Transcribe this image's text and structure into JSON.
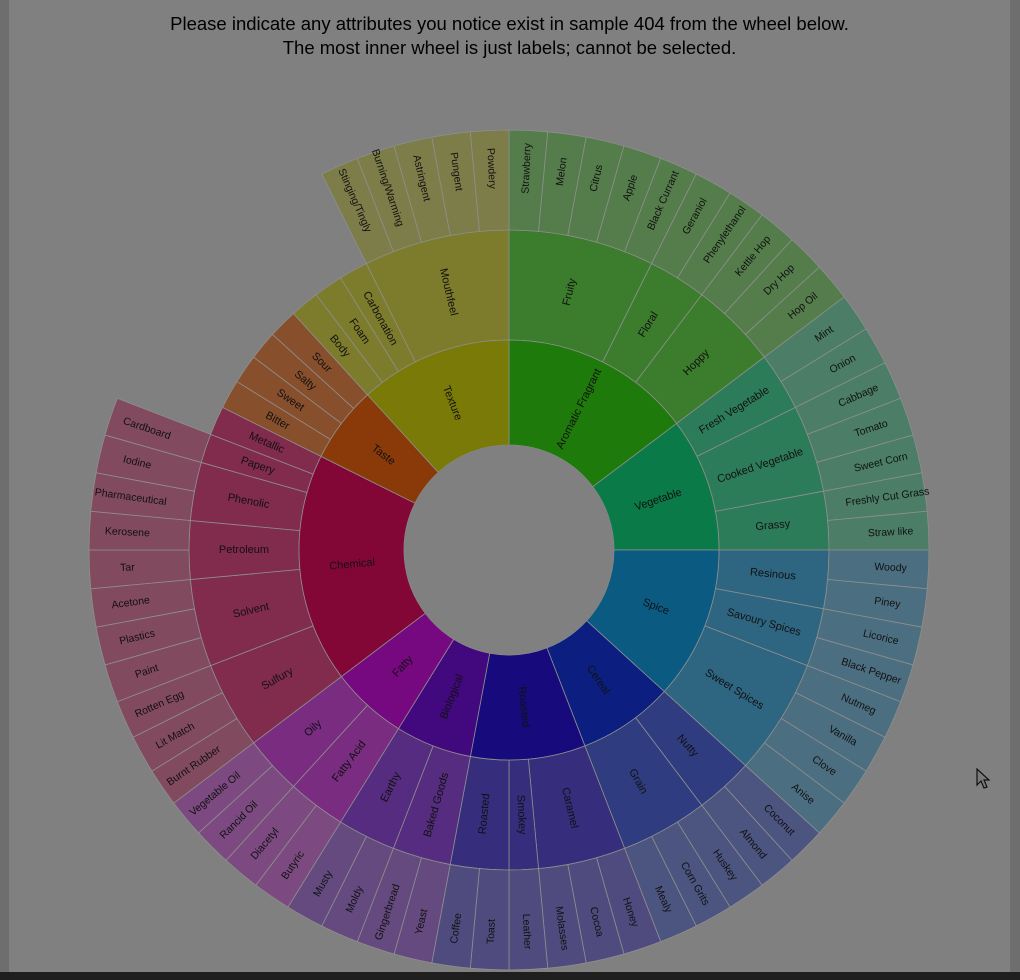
{
  "instructions": {
    "line1": "Please indicate any attributes you notice exist in sample 404 from the wheel below.",
    "line2": "The most inner wheel is just labels; cannot be selected."
  },
  "wheel": {
    "hint": "sunburst flavour wheel, three rings",
    "categories": [
      {
        "name": "Aromatic Fragrant",
        "color": "#1e7a0a",
        "subs": [
          {
            "name": "Fruity",
            "leaves": [
              "Strawberry",
              "Melon",
              "Citrus",
              "Apple",
              "Black Currant"
            ]
          },
          {
            "name": "Floral",
            "leaves": [
              "Geraniol",
              "Phenylethanol"
            ]
          },
          {
            "name": "Hoppy",
            "leaves": [
              "Kettle Hop",
              "Dry Hop",
              "Hop Oil"
            ]
          }
        ]
      },
      {
        "name": "Vegetable",
        "color": "#0a7a48",
        "subs": [
          {
            "name": "Fresh Vegetable",
            "leaves": [
              "Mint",
              "Onion"
            ]
          },
          {
            "name": "Cooked Vegetable",
            "leaves": [
              "Cabbage",
              "Tomato",
              "Sweet Corn"
            ]
          },
          {
            "name": "Grassy",
            "leaves": [
              "Freshly Cut Grass",
              "Straw like"
            ]
          }
        ]
      },
      {
        "name": "Spice",
        "color": "#0b5a82",
        "subs": [
          {
            "name": "Resinous",
            "leaves": [
              "Woody",
              "Piney"
            ]
          },
          {
            "name": "Savoury Spices",
            "leaves": [
              "Licorice",
              "Black Pepper"
            ]
          },
          {
            "name": "Sweet Spices",
            "leaves": [
              "Nutmeg",
              "Vanilla",
              "Clove",
              "Anise"
            ]
          }
        ]
      },
      {
        "name": "Cereal",
        "color": "#0c1f80",
        "subs": [
          {
            "name": "Nutty",
            "leaves": [
              "Coconut",
              "Almond"
            ]
          },
          {
            "name": "Grain",
            "leaves": [
              "Huskey",
              "Corn Grits",
              "Mealy"
            ]
          }
        ]
      },
      {
        "name": "Roasted",
        "color": "#160a7c",
        "subs": [
          {
            "name": "Caramel",
            "leaves": [
              "Honey",
              "Cocoa",
              "Molasses"
            ]
          },
          {
            "name": "Smokey",
            "leaves": [
              "Leather"
            ]
          },
          {
            "name": "Roasted",
            "leaves": [
              "Toast",
              "Coffee"
            ]
          }
        ]
      },
      {
        "name": "Biological",
        "color": "#42087e",
        "subs": [
          {
            "name": "Baked Goods",
            "leaves": [
              "Yeast",
              "Gingerbread"
            ]
          },
          {
            "name": "Earthy",
            "leaves": [
              "Moldy",
              "Musty"
            ]
          }
        ]
      },
      {
        "name": "Fatty",
        "color": "#760880",
        "subs": [
          {
            "name": "Fatty Acid",
            "leaves": [
              "Butyric",
              "Diacetyl"
            ]
          },
          {
            "name": "Oily",
            "leaves": [
              "Rancid Oil",
              "Vegetable Oil"
            ]
          }
        ]
      },
      {
        "name": "Chemical",
        "color": "#820737",
        "subs": [
          {
            "name": "Sulfury",
            "leaves": [
              "Burnt Rubber",
              "Lit Match",
              "Rotten Egg"
            ]
          },
          {
            "name": "Solvent",
            "leaves": [
              "Paint",
              "Plastics",
              "Acetone"
            ]
          },
          {
            "name": "Petroleum",
            "leaves": [
              "Tar",
              "Kerosene"
            ]
          },
          {
            "name": "Phenolic",
            "leaves": [
              "Pharmaceutical",
              "Iodine"
            ]
          },
          {
            "name": "Papery",
            "leaves": [
              "Cardboard"
            ]
          },
          {
            "name": "Metallic",
            "leaves": []
          }
        ]
      },
      {
        "name": "Taste",
        "color": "#8a3a08",
        "subs": [
          {
            "name": "Bitter",
            "leaves": []
          },
          {
            "name": "Sweet",
            "leaves": []
          },
          {
            "name": "Salty",
            "leaves": []
          },
          {
            "name": "Sour",
            "leaves": []
          }
        ]
      },
      {
        "name": "Texture",
        "color": "#7a7a08",
        "subs": [
          {
            "name": "Body",
            "leaves": []
          },
          {
            "name": "Foam",
            "leaves": []
          },
          {
            "name": "Carbonation",
            "leaves": []
          },
          {
            "name": "Mouthfeel",
            "leaves": [
              "Stinging/Tingly",
              "Burning/Warming",
              "Astringent",
              "Pungent",
              "Powdery"
            ]
          }
        ]
      }
    ]
  }
}
